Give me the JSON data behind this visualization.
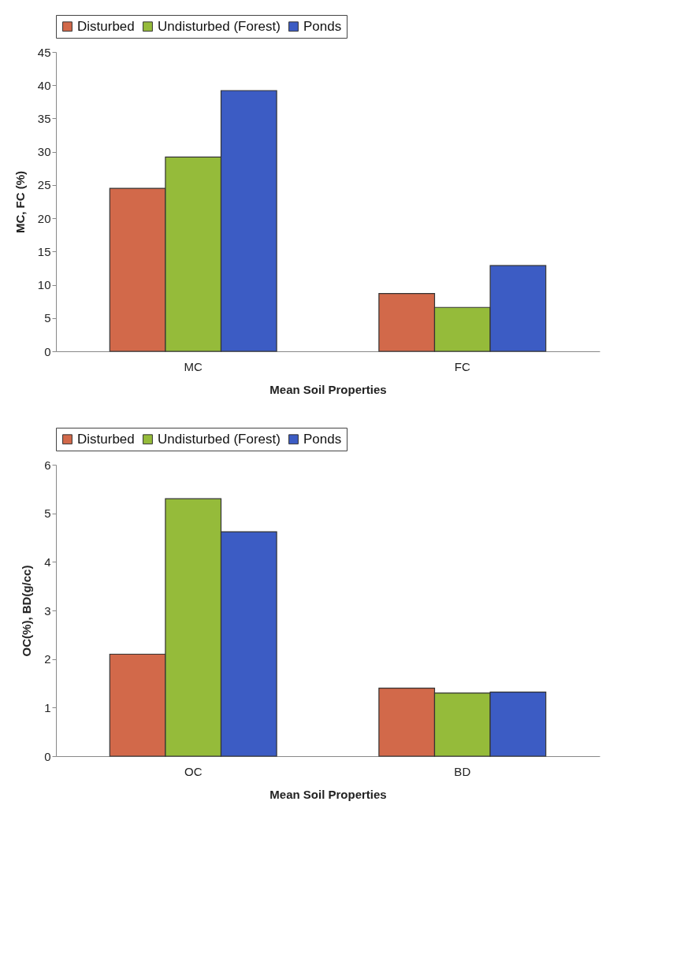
{
  "chart_data": [
    {
      "type": "bar",
      "categories": [
        "MC",
        "FC"
      ],
      "xlabel": "Mean Soil Properties",
      "ylabel": "MC, FC (%)",
      "series": [
        {
          "name": "Disturbed",
          "color": "#d2694a",
          "values": [
            24.5,
            8.7
          ]
        },
        {
          "name": "Undisturbed (Forest)",
          "color": "#95bb3a",
          "values": [
            29.2,
            6.6
          ]
        },
        {
          "name": "Ponds",
          "color": "#3c5cc4",
          "values": [
            39.2,
            12.9
          ]
        }
      ],
      "ylim": [
        0,
        45
      ],
      "yticks": [
        0,
        5,
        10,
        15,
        20,
        25,
        30,
        35,
        40,
        45
      ],
      "grid": false,
      "legend": "top"
    },
    {
      "type": "bar",
      "categories": [
        "OC",
        "BD"
      ],
      "xlabel": "Mean Soil Properties",
      "ylabel": "OC(%), BD(g/cc)",
      "series": [
        {
          "name": "Disturbed",
          "color": "#d2694a",
          "values": [
            2.1,
            1.4
          ]
        },
        {
          "name": "Undisturbed (Forest)",
          "color": "#95bb3a",
          "values": [
            5.3,
            1.3
          ]
        },
        {
          "name": "Ponds",
          "color": "#3c5cc4",
          "values": [
            4.62,
            1.32
          ]
        }
      ],
      "ylim": [
        0,
        6
      ],
      "yticks": [
        0,
        1,
        2,
        3,
        4,
        5,
        6
      ],
      "grid": false,
      "legend": "top"
    }
  ]
}
